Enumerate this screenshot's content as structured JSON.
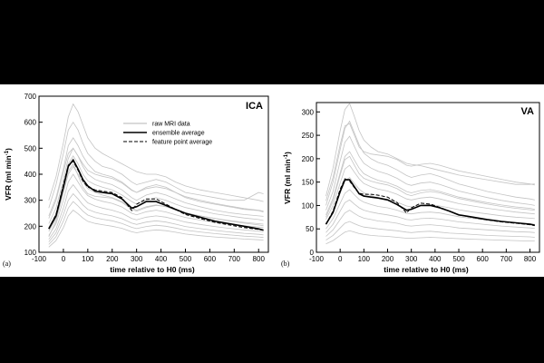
{
  "legend": {
    "raw": "raw MRI data",
    "ensemble": "ensemble average",
    "feature": "feature point average"
  },
  "chart_data": [
    {
      "type": "line",
      "panel": "(a)",
      "title": "ICA",
      "xlabel": "time relative to H0 (ms)",
      "ylabel": "VFR (ml min",
      "ylabel_sup": "-1",
      "ylabel_close": ")",
      "xlim": [
        -100,
        840
      ],
      "ylim": [
        100,
        700
      ],
      "xticks": [
        -100,
        0,
        100,
        200,
        300,
        400,
        500,
        600,
        700,
        800
      ],
      "yticks": [
        100,
        200,
        300,
        400,
        500,
        600,
        700
      ],
      "x": [
        -60,
        -30,
        0,
        20,
        40,
        60,
        80,
        100,
        130,
        160,
        200,
        240,
        280,
        300,
        340,
        380,
        420,
        460,
        500,
        560,
        620,
        680,
        740,
        800,
        820
      ],
      "series": [
        {
          "name": "ensemble average",
          "values": [
            190,
            240,
            350,
            430,
            455,
            420,
            380,
            355,
            335,
            330,
            325,
            305,
            270,
            275,
            295,
            295,
            280,
            265,
            250,
            235,
            220,
            210,
            200,
            190,
            185
          ]
        },
        {
          "name": "feature point average",
          "values": [
            190,
            245,
            360,
            435,
            450,
            415,
            375,
            350,
            340,
            335,
            330,
            310,
            260,
            285,
            305,
            305,
            285,
            265,
            245,
            230,
            215,
            205,
            195,
            188,
            185
          ]
        },
        {
          "name": "raw 1",
          "values": [
            300,
            390,
            520,
            620,
            670,
            640,
            590,
            540,
            500,
            480,
            460,
            440,
            420,
            410,
            400,
            400,
            390,
            370,
            355,
            340,
            330,
            320,
            310,
            300,
            295
          ]
        },
        {
          "name": "raw 2",
          "values": [
            270,
            360,
            480,
            570,
            600,
            570,
            520,
            480,
            450,
            430,
            420,
            400,
            370,
            360,
            370,
            380,
            370,
            350,
            330,
            320,
            310,
            300,
            300,
            330,
            325
          ]
        },
        {
          "name": "raw 3",
          "values": [
            240,
            310,
            420,
            510,
            540,
            510,
            470,
            440,
            410,
            400,
            390,
            370,
            340,
            330,
            350,
            360,
            350,
            330,
            310,
            295,
            285,
            275,
            265,
            260,
            255
          ]
        },
        {
          "name": "raw 4",
          "values": [
            210,
            270,
            380,
            460,
            500,
            470,
            430,
            400,
            380,
            370,
            360,
            340,
            310,
            300,
            320,
            330,
            320,
            305,
            290,
            275,
            262,
            252,
            245,
            240,
            238
          ]
        },
        {
          "name": "raw 5",
          "values": [
            195,
            250,
            360,
            440,
            470,
            440,
            400,
            375,
            360,
            350,
            340,
            320,
            295,
            285,
            300,
            310,
            300,
            285,
            272,
            260,
            248,
            240,
            232,
            226,
            222
          ]
        },
        {
          "name": "raw 6",
          "values": [
            180,
            230,
            330,
            400,
            430,
            400,
            370,
            345,
            330,
            320,
            310,
            295,
            270,
            262,
            275,
            282,
            275,
            262,
            250,
            240,
            230,
            222,
            215,
            210,
            208
          ]
        },
        {
          "name": "raw 7",
          "values": [
            165,
            210,
            300,
            370,
            400,
            370,
            340,
            318,
            304,
            296,
            288,
            274,
            250,
            244,
            256,
            262,
            255,
            244,
            234,
            224,
            215,
            208,
            202,
            197,
            195
          ]
        },
        {
          "name": "raw 8",
          "values": [
            150,
            190,
            270,
            335,
            360,
            335,
            310,
            290,
            278,
            270,
            262,
            250,
            230,
            225,
            235,
            240,
            235,
            226,
            216,
            207,
            199,
            192,
            186,
            181,
            179
          ]
        },
        {
          "name": "raw 9",
          "values": [
            140,
            175,
            245,
            300,
            325,
            305,
            282,
            265,
            254,
            247,
            240,
            229,
            212,
            207,
            216,
            221,
            216,
            208,
            199,
            191,
            184,
            178,
            173,
            169,
            167
          ]
        },
        {
          "name": "raw 10",
          "values": [
            130,
            160,
            220,
            270,
            295,
            278,
            258,
            243,
            233,
            227,
            221,
            211,
            196,
            191,
            199,
            204,
            200,
            193,
            185,
            178,
            172,
            167,
            162,
            159,
            157
          ]
        },
        {
          "name": "raw 11",
          "values": [
            120,
            145,
            195,
            240,
            262,
            248,
            232,
            219,
            211,
            206,
            200,
            192,
            179,
            175,
            182,
            186,
            183,
            177,
            170,
            164,
            159,
            155,
            151,
            148,
            147
          ]
        },
        {
          "name": "raw 12",
          "values": [
            230,
            300,
            410,
            480,
            500,
            470,
            440,
            415,
            400,
            392,
            384,
            366,
            338,
            330,
            345,
            352,
            345,
            330,
            314,
            300,
            288,
            278,
            268,
            262,
            258
          ]
        },
        {
          "name": "raw 13",
          "values": [
            160,
            220,
            330,
            410,
            440,
            395,
            350,
            325,
            315,
            312,
            308,
            292,
            265,
            258,
            272,
            280,
            276,
            264,
            252,
            240,
            230,
            220,
            212,
            205,
            202
          ]
        }
      ]
    },
    {
      "type": "line",
      "panel": "(b)",
      "title": "VA",
      "xlabel": "time relative to H0 (ms)",
      "ylabel": "VFR (ml min",
      "ylabel_sup": "-1",
      "ylabel_close": ")",
      "xlim": [
        -100,
        840
      ],
      "ylim": [
        0,
        320
      ],
      "xticks": [
        -100,
        0,
        100,
        200,
        300,
        400,
        500,
        600,
        700,
        800
      ],
      "yticks": [
        0,
        50,
        100,
        150,
        200,
        250,
        300
      ],
      "x": [
        -60,
        -30,
        0,
        20,
        40,
        60,
        80,
        100,
        130,
        160,
        200,
        240,
        280,
        300,
        340,
        380,
        420,
        460,
        500,
        560,
        620,
        680,
        740,
        800,
        820
      ],
      "series": [
        {
          "name": "ensemble average",
          "values": [
            60,
            85,
            130,
            155,
            155,
            140,
            125,
            120,
            118,
            116,
            112,
            102,
            90,
            92,
            100,
            100,
            95,
            88,
            80,
            75,
            70,
            66,
            63,
            60,
            58
          ]
        },
        {
          "name": "feature point average",
          "values": [
            60,
            88,
            135,
            157,
            152,
            138,
            126,
            124,
            124,
            122,
            118,
            106,
            84,
            95,
            105,
            103,
            96,
            88,
            80,
            74,
            69,
            65,
            62,
            59,
            57
          ]
        },
        {
          "name": "raw 1",
          "values": [
            120,
            180,
            260,
            305,
            318,
            290,
            260,
            240,
            225,
            215,
            210,
            200,
            190,
            188,
            185,
            180,
            175,
            170,
            165,
            160,
            155,
            150,
            145,
            145,
            146
          ]
        },
        {
          "name": "raw 2",
          "values": [
            100,
            150,
            220,
            265,
            280,
            255,
            230,
            212,
            200,
            192,
            186,
            176,
            164,
            160,
            165,
            168,
            162,
            154,
            146,
            138,
            130,
            124,
            118,
            114,
            112
          ]
        },
        {
          "name": "raw 3",
          "values": [
            90,
            130,
            195,
            235,
            248,
            226,
            205,
            190,
            180,
            173,
            167,
            158,
            146,
            143,
            148,
            150,
            145,
            138,
            131,
            124,
            117,
            111,
            106,
            102,
            100
          ]
        },
        {
          "name": "raw 4",
          "values": [
            80,
            115,
            170,
            205,
            215,
            197,
            180,
            168,
            160,
            154,
            149,
            141,
            130,
            127,
            132,
            134,
            130,
            124,
            118,
            112,
            106,
            101,
            97,
            94,
            92
          ]
        },
        {
          "name": "raw 5",
          "values": [
            70,
            100,
            148,
            178,
            186,
            171,
            157,
            147,
            140,
            135,
            131,
            124,
            114,
            112,
            116,
            118,
            114,
            109,
            104,
            99,
            94,
            90,
            86,
            83,
            82
          ]
        },
        {
          "name": "raw 6",
          "values": [
            60,
            86,
            126,
            152,
            160,
            147,
            135,
            127,
            121,
            117,
            113,
            107,
            99,
            97,
            101,
            102,
            99,
            95,
            91,
            86,
            82,
            78,
            75,
            73,
            72
          ]
        },
        {
          "name": "raw 7",
          "values": [
            50,
            72,
            105,
            126,
            134,
            123,
            113,
            107,
            102,
            98,
            95,
            90,
            83,
            82,
            85,
            86,
            84,
            80,
            76,
            72,
            69,
            66,
            63,
            61,
            60
          ]
        },
        {
          "name": "raw 8",
          "values": [
            42,
            60,
            88,
            106,
            112,
            103,
            95,
            90,
            86,
            83,
            80,
            76,
            70,
            69,
            72,
            73,
            71,
            68,
            65,
            62,
            59,
            56,
            54,
            52,
            51
          ]
        },
        {
          "name": "raw 9",
          "values": [
            34,
            48,
            70,
            84,
            90,
            83,
            77,
            73,
            70,
            67,
            65,
            62,
            57,
            56,
            58,
            59,
            57,
            55,
            52,
            50,
            48,
            46,
            44,
            43,
            42
          ]
        },
        {
          "name": "raw 10",
          "values": [
            26,
            36,
            52,
            62,
            66,
            61,
            57,
            54,
            52,
            50,
            48,
            46,
            43,
            42,
            44,
            45,
            43,
            41,
            40,
            38,
            36,
            35,
            34,
            33,
            32
          ]
        },
        {
          "name": "raw 11",
          "values": [
            18,
            25,
            36,
            43,
            46,
            43,
            40,
            38,
            36,
            35,
            34,
            32,
            30,
            30,
            31,
            32,
            31,
            30,
            29,
            28,
            27,
            26,
            25,
            24,
            24
          ]
        },
        {
          "name": "raw 12",
          "values": [
            110,
            160,
            230,
            270,
            275,
            250,
            225,
            215,
            210,
            208,
            205,
            198,
            186,
            184,
            188,
            190,
            186,
            180,
            174,
            168,
            162,
            156,
            150,
            146,
            144
          ]
        },
        {
          "name": "raw 13",
          "values": [
            75,
            110,
            165,
            198,
            205,
            186,
            168,
            158,
            152,
            148,
            144,
            136,
            124,
            121,
            127,
            130,
            127,
            121,
            115,
            109,
            103,
            98,
            94,
            91,
            90
          ]
        }
      ]
    }
  ]
}
